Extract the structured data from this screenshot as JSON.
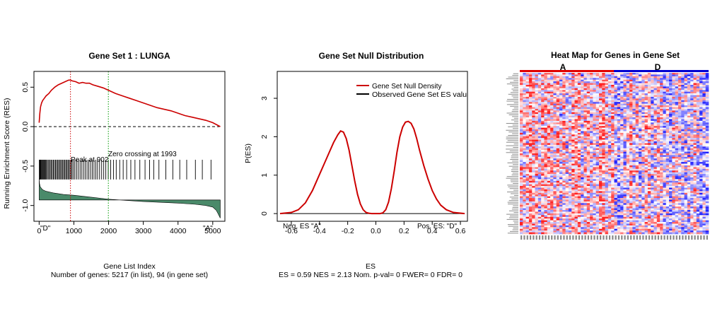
{
  "chart_data": [
    {
      "type": "line",
      "title": "Gene Set  1 : LUNGA",
      "xlabel": "Gene List Index",
      "ylabel": "Running Enrichment Score (RES)",
      "subtitle": "Number of genes: 5217 (in list), 94 (in gene set)",
      "xlim": [
        -150,
        5350
      ],
      "ylim": [
        -1.2,
        0.7
      ],
      "xticks": [
        0,
        1000,
        2000,
        3000,
        4000,
        5000
      ],
      "yticks": [
        0.5,
        0.0,
        -0.5,
        -1.0
      ],
      "xtick_labels": [
        "0",
        "1000",
        "2000",
        "3000",
        "4000",
        "5000"
      ],
      "ytick_labels": [
        "0.5",
        "0.0",
        "-0.5",
        "-1.0"
      ],
      "es_curve": {
        "x": [
          0,
          20,
          40,
          70,
          100,
          150,
          200,
          280,
          350,
          450,
          550,
          650,
          750,
          850,
          902,
          950,
          1050,
          1150,
          1250,
          1350,
          1450,
          1550,
          1700,
          1850,
          2000,
          2200,
          2400,
          2600,
          2800,
          3000,
          3200,
          3400,
          3600,
          3800,
          4000,
          4200,
          4400,
          4600,
          4800,
          5000,
          5217
        ],
        "y": [
          0.05,
          0.17,
          0.25,
          0.3,
          0.33,
          0.36,
          0.39,
          0.42,
          0.46,
          0.5,
          0.53,
          0.55,
          0.57,
          0.59,
          0.59,
          0.58,
          0.57,
          0.55,
          0.56,
          0.55,
          0.55,
          0.53,
          0.51,
          0.49,
          0.46,
          0.42,
          0.39,
          0.36,
          0.33,
          0.3,
          0.27,
          0.24,
          0.22,
          0.2,
          0.17,
          0.14,
          0.12,
          0.1,
          0.08,
          0.05,
          0.0
        ]
      },
      "hit_positions": [
        5,
        15,
        30,
        45,
        60,
        80,
        100,
        120,
        140,
        160,
        180,
        200,
        230,
        260,
        290,
        320,
        350,
        380,
        410,
        440,
        470,
        500,
        530,
        560,
        590,
        620,
        650,
        680,
        710,
        740,
        770,
        800,
        830,
        860,
        890,
        920,
        950,
        990,
        1030,
        1080,
        1130,
        1180,
        1230,
        1280,
        1330,
        1380,
        1430,
        1480,
        1530,
        1580,
        1630,
        1680,
        1740,
        1800,
        1860,
        1920,
        1990,
        2060,
        2140,
        2220,
        2320,
        2420,
        2520,
        2640,
        2760,
        2900,
        3050,
        3180,
        3300,
        3450,
        3650,
        3850,
        4050,
        4250,
        4500,
        4700,
        4950
      ],
      "hit_band": [
        -0.42,
        -0.67
      ],
      "ranked_metric": {
        "x": [
          0,
          10,
          30,
          60,
          100,
          200,
          400,
          700,
          1000,
          1500,
          2000,
          2500,
          3000,
          3500,
          4000,
          4500,
          4800,
          5000,
          5100,
          5150,
          5217
        ],
        "y": [
          -0.66,
          -0.72,
          -0.76,
          -0.78,
          -0.8,
          -0.82,
          -0.84,
          -0.86,
          -0.87,
          -0.895,
          -0.92,
          -0.935,
          -0.95,
          -0.96,
          -0.97,
          -0.985,
          -1.0,
          -1.02,
          -1.06,
          -1.1,
          -1.16
        ]
      },
      "ranked_metric_baseline": -0.93,
      "peak": {
        "x": 902,
        "label": "Peak at 902"
      },
      "zero_crossing": {
        "x": 1993,
        "label": "Zero crossing at 1993"
      },
      "corner_left": "\"D\"",
      "corner_right": "\"A\"",
      "colors": {
        "es_line": "#cc0000",
        "fill": "#4a8a6a",
        "peak_line": "#cc0000",
        "zero_line": "#009900"
      }
    },
    {
      "type": "line",
      "title": "Gene Set Null Distribution",
      "xlabel": "ES",
      "ylabel": "P(ES)",
      "subtitle": "ES = 0.59  NES = 2.13 Nom. p-val= 0 FWER= 0 FDR= 0",
      "xlim": [
        -0.7,
        0.65
      ],
      "ylim": [
        -0.2,
        3.7
      ],
      "xticks": [
        -0.6,
        -0.4,
        -0.2,
        0.0,
        0.2,
        0.4,
        0.6
      ],
      "yticks": [
        0,
        1,
        2,
        3
      ],
      "xtick_labels": [
        "-0.6",
        "-0.4",
        "-0.2",
        "0.0",
        "0.2",
        "0.4",
        "0.6"
      ],
      "ytick_labels": [
        "0",
        "1",
        "2",
        "3"
      ],
      "series": [
        {
          "name": "Gene Set Null Density",
          "x": [
            -0.68,
            -0.6,
            -0.55,
            -0.5,
            -0.45,
            -0.42,
            -0.39,
            -0.36,
            -0.33,
            -0.3,
            -0.27,
            -0.25,
            -0.23,
            -0.21,
            -0.19,
            -0.17,
            -0.15,
            -0.13,
            -0.11,
            -0.09,
            -0.07,
            -0.05,
            -0.03,
            0.0,
            0.03,
            0.05,
            0.07,
            0.09,
            0.11,
            0.13,
            0.15,
            0.17,
            0.19,
            0.21,
            0.23,
            0.25,
            0.27,
            0.29,
            0.31,
            0.34,
            0.37,
            0.4,
            0.43,
            0.46,
            0.5,
            0.55,
            0.63
          ],
          "y": [
            0,
            0.03,
            0.1,
            0.28,
            0.6,
            0.85,
            1.1,
            1.35,
            1.6,
            1.85,
            2.05,
            2.15,
            2.12,
            1.95,
            1.65,
            1.25,
            0.85,
            0.5,
            0.25,
            0.1,
            0.03,
            0.01,
            0,
            0,
            0,
            0.02,
            0.1,
            0.3,
            0.65,
            1.1,
            1.6,
            2.0,
            2.25,
            2.38,
            2.4,
            2.35,
            2.2,
            1.95,
            1.65,
            1.25,
            0.9,
            0.6,
            0.38,
            0.22,
            0.1,
            0.03,
            0
          ]
        },
        {
          "name": "Observed Gene Set ES valu",
          "x": [
            0.59,
            0.59
          ],
          "y": [
            0,
            0
          ]
        }
      ],
      "legend_position": "top-right",
      "corner_left": "Neg. ES \"A\"",
      "corner_right": "Pos. ES: \"D\"",
      "colors": {
        "density": "#cc0000",
        "observed": "#000000"
      }
    },
    {
      "type": "heatmap",
      "title": "Heat Map for Genes in Gene Set",
      "column_groups": [
        {
          "name": "A",
          "color": "#e00000"
        },
        {
          "name": "D",
          "color": "#0000d0"
        }
      ],
      "rows": 94,
      "columns": 62,
      "color_scale": [
        "#2020ff",
        "#ffffff",
        "#ff2020"
      ]
    }
  ]
}
